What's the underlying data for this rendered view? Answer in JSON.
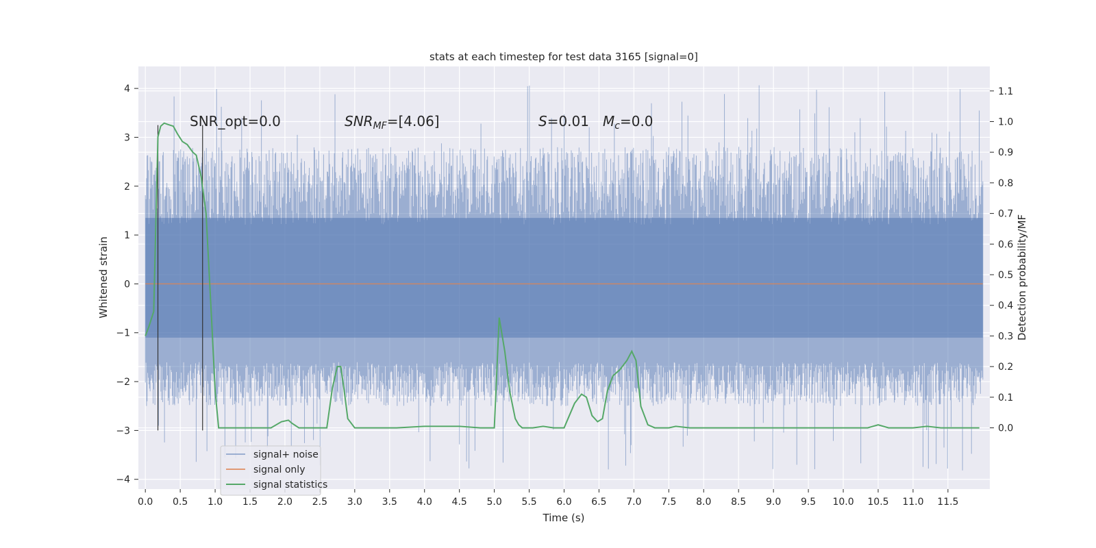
{
  "chart_data": {
    "type": "line",
    "title": "stats at each timestep for test data 3165 [signal=0]",
    "xlabel": "Time (s)",
    "ylabel_left": "Whitened strain",
    "ylabel_right": "Detection probability/MF",
    "xlim": [
      -0.1,
      12.1
    ],
    "ylim_left": [
      -4.2,
      4.45
    ],
    "ylim_right": [
      -0.2,
      1.18
    ],
    "x_ticks": [
      "0.0",
      "0.5",
      "1.0",
      "1.5",
      "2.0",
      "2.5",
      "3.0",
      "3.5",
      "4.0",
      "4.5",
      "5.0",
      "5.5",
      "6.0",
      "6.5",
      "7.0",
      "7.5",
      "8.0",
      "8.5",
      "9.0",
      "9.5",
      "10.0",
      "10.5",
      "11.0",
      "11.5"
    ],
    "y_ticks_left": [
      "4",
      "3",
      "2",
      "1",
      "0",
      "−1",
      "−2",
      "−3",
      "−4"
    ],
    "y_ticks_right": [
      "1.1",
      "1.0",
      "0.9",
      "0.8",
      "0.7",
      "0.6",
      "0.5",
      "0.4",
      "0.3",
      "0.2",
      "0.1",
      "0.0"
    ],
    "grid": true,
    "legend_position": "lower-left",
    "legend": [
      "signal+ noise",
      "signal only",
      "signal statistics"
    ],
    "colors": {
      "signal_noise": "#4c72b0",
      "signal_only": "#dd8452",
      "signal_statistics": "#55a868",
      "background": "#eaeaf2",
      "grid": "#ffffff",
      "vlines": "#333333"
    },
    "annotations": {
      "snr_opt": "SNR_opt=0.0",
      "snr_mf_base": "SNR",
      "snr_mf_sub": "MF",
      "snr_mf_value": "=[4.06]",
      "s_symbol": "S",
      "s_value": "=0.01",
      "mc_symbol": "M",
      "mc_sub": "c",
      "mc_value": "=0.0"
    },
    "vertical_lines_x": [
      0.18,
      0.82
    ],
    "vertical_lines_y_range_left": [
      -3.0,
      3.25
    ],
    "signal_noise": {
      "x_range": [
        0.0,
        12.0
      ],
      "band_y": [
        -1.1,
        1.35
      ],
      "typical_peak_y": [
        2.2,
        2.8
      ],
      "max_y": 4.1,
      "min_y": -3.85
    },
    "signal_only": {
      "x": [
        0.0,
        12.0
      ],
      "y": [
        0.0,
        0.0
      ]
    },
    "signal_statistics": {
      "x": [
        0.0,
        0.05,
        0.12,
        0.18,
        0.22,
        0.27,
        0.33,
        0.4,
        0.46,
        0.53,
        0.6,
        0.68,
        0.73,
        0.8,
        0.87,
        0.95,
        1.0,
        1.05,
        1.1,
        1.2,
        1.5,
        1.8,
        1.95,
        2.05,
        2.1,
        2.2,
        2.4,
        2.6,
        2.68,
        2.75,
        2.8,
        2.85,
        2.9,
        3.0,
        3.1,
        3.3,
        3.6,
        4.0,
        4.5,
        4.8,
        4.95,
        5.0,
        5.07,
        5.15,
        5.22,
        5.3,
        5.35,
        5.4,
        5.45,
        5.55,
        5.7,
        5.85,
        6.0,
        6.15,
        6.25,
        6.32,
        6.4,
        6.48,
        6.55,
        6.62,
        6.7,
        6.8,
        6.9,
        6.97,
        7.03,
        7.1,
        7.2,
        7.3,
        7.5,
        7.6,
        7.8,
        8.2,
        8.6,
        9.0,
        9.5,
        10.0,
        10.35,
        10.5,
        10.65,
        10.8,
        11.0,
        11.2,
        11.4,
        11.6,
        11.8,
        11.95
      ],
      "y": [
        0.3,
        0.33,
        0.38,
        0.95,
        0.985,
        0.995,
        0.99,
        0.985,
        0.96,
        0.935,
        0.925,
        0.9,
        0.89,
        0.82,
        0.7,
        0.35,
        0.12,
        0.0,
        0.0,
        0.0,
        0.0,
        0.0,
        0.02,
        0.025,
        0.015,
        0.0,
        0.0,
        0.0,
        0.13,
        0.2,
        0.2,
        0.12,
        0.03,
        0.0,
        0.0,
        0.0,
        0.0,
        0.005,
        0.005,
        0.0,
        0.0,
        0.0,
        0.36,
        0.25,
        0.12,
        0.03,
        0.01,
        0.0,
        0.0,
        0.0,
        0.005,
        0.0,
        0.0,
        0.08,
        0.11,
        0.1,
        0.04,
        0.02,
        0.03,
        0.12,
        0.17,
        0.19,
        0.22,
        0.25,
        0.22,
        0.07,
        0.01,
        0.0,
        0.0,
        0.005,
        0.0,
        0.0,
        0.0,
        0.0,
        0.0,
        0.0,
        0.0,
        0.01,
        0.0,
        0.0,
        0.0,
        0.005,
        0.0,
        0.0,
        0.0,
        0.0
      ]
    }
  }
}
